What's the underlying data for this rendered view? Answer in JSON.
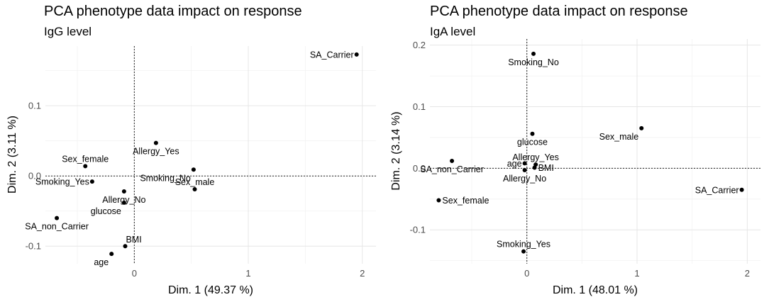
{
  "colors": {
    "point": "#000000",
    "grid_major": "#e6e6e6",
    "grid_minor": "#f2f2f2",
    "tick_text": "#4d4d4d",
    "background": "#ffffff"
  },
  "chart_data": [
    {
      "type": "scatter",
      "title": "PCA phenotype data impact on response",
      "subtitle": "IgG level",
      "xlabel": "Dim. 1 (49.37 %)",
      "ylabel": "Dim. 2 (3.11 %)",
      "xlim": [
        -0.78,
        2.12
      ],
      "ylim": [
        -0.125,
        0.185
      ],
      "x_ticks": [
        0,
        1,
        2
      ],
      "x_tick_labels": [
        "0",
        "1",
        "2"
      ],
      "y_ticks": [
        -0.1,
        0.0,
        0.1
      ],
      "y_tick_labels": [
        "-0.1",
        "0.0",
        "0.1"
      ],
      "grid": true,
      "zero_lines": true,
      "points": [
        {
          "label": "SA_Carrier",
          "x": 1.95,
          "y": 0.173,
          "label_pos": "left"
        },
        {
          "label": "Allergy_Yes",
          "x": 0.19,
          "y": 0.047,
          "label_pos": "below"
        },
        {
          "label": "Sex_female",
          "x": -0.43,
          "y": 0.014,
          "label_pos": "above"
        },
        {
          "label": "Smoking_No",
          "x": 0.52,
          "y": 0.009,
          "label_pos": "below-left"
        },
        {
          "label": "Smoking_Yes",
          "x": -0.37,
          "y": -0.008,
          "label_pos": "left"
        },
        {
          "label": "Sex_male",
          "x": 0.53,
          "y": -0.019,
          "label_pos": "above"
        },
        {
          "label": "Allergy_No",
          "x": -0.09,
          "y": -0.022,
          "label_pos": "below"
        },
        {
          "label": "glucose",
          "x": -0.09,
          "y": -0.038,
          "label_pos": "below-left"
        },
        {
          "label": "SA_non_Carrier",
          "x": -0.68,
          "y": -0.06,
          "label_pos": "below"
        },
        {
          "label": "BMI",
          "x": -0.08,
          "y": -0.1,
          "label_pos": "above-right"
        },
        {
          "label": "age",
          "x": -0.2,
          "y": -0.111,
          "label_pos": "below-left"
        }
      ]
    },
    {
      "type": "scatter",
      "title": "PCA phenotype data impact on response",
      "subtitle": "IgA level",
      "xlabel": "Dim. 1 (48.01 %)",
      "ylabel": "Dim. 2 (3.14 %)",
      "xlim": [
        -0.88,
        2.12
      ],
      "ylim": [
        -0.155,
        0.21
      ],
      "x_ticks": [
        0,
        1,
        2
      ],
      "x_tick_labels": [
        "0",
        "1",
        "2"
      ],
      "y_ticks": [
        -0.1,
        0.0,
        0.1,
        0.2
      ],
      "y_tick_labels": [
        "-0.1",
        "0.0",
        "0.1",
        "0.2"
      ],
      "grid": true,
      "zero_lines": true,
      "points": [
        {
          "label": "Smoking_No",
          "x": 0.06,
          "y": 0.186,
          "label_pos": "below"
        },
        {
          "label": "Sex_male",
          "x": 1.04,
          "y": 0.065,
          "label_pos": "below-left"
        },
        {
          "label": "glucose",
          "x": 0.05,
          "y": 0.056,
          "label_pos": "below"
        },
        {
          "label": "SA_non_Carrier",
          "x": -0.68,
          "y": 0.012,
          "label_pos": "below"
        },
        {
          "label": "age",
          "x": -0.02,
          "y": 0.008,
          "label_pos": "left"
        },
        {
          "label": "Allergy_Yes",
          "x": 0.08,
          "y": 0.006,
          "label_pos": "above"
        },
        {
          "label": "BMI",
          "x": 0.07,
          "y": 0.001,
          "label_pos": "right"
        },
        {
          "label": "Allergy_No",
          "x": -0.02,
          "y": -0.003,
          "label_pos": "below"
        },
        {
          "label": "SA_Carrier",
          "x": 1.95,
          "y": -0.035,
          "label_pos": "left"
        },
        {
          "label": "Sex_female",
          "x": -0.8,
          "y": -0.052,
          "label_pos": "right"
        },
        {
          "label": "Smoking_Yes",
          "x": -0.03,
          "y": -0.135,
          "label_pos": "above"
        }
      ]
    }
  ]
}
